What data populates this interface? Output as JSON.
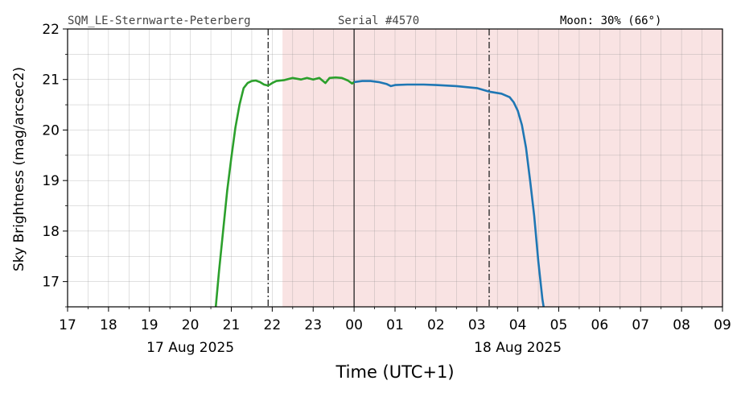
{
  "header": {
    "station": "SQM_LE-Sternwarte-Peterberg",
    "serial": "Serial #4570",
    "moon": "Moon: 30% (66°)"
  },
  "chart_data": {
    "type": "line",
    "xlabel": "Time (UTC+1)",
    "ylabel": "Sky Brightness (mag/arcsec2)",
    "x_units": "hours since 17 Aug 2025 00:00 (UTC+1)",
    "xlim": [
      17,
      33
    ],
    "ylim": [
      16.5,
      22
    ],
    "yticks": [
      17,
      18,
      19,
      20,
      21,
      22
    ],
    "ytick_labels": [
      "17",
      "18",
      "19",
      "20",
      "21",
      "22"
    ],
    "xticks": [
      17,
      18,
      19,
      20,
      21,
      22,
      23,
      24,
      25,
      26,
      27,
      28,
      29,
      30,
      31,
      32,
      33
    ],
    "xtick_labels": [
      "17",
      "18",
      "19",
      "20",
      "21",
      "22",
      "23",
      "00",
      "01",
      "02",
      "03",
      "04",
      "05",
      "06",
      "07",
      "08",
      "09"
    ],
    "date_labels": [
      {
        "x": 20,
        "text": "17 Aug 2025"
      },
      {
        "x": 28,
        "text": "18 Aug 2025"
      }
    ],
    "grid": true,
    "shaded_region": {
      "x_start": 22.25,
      "x_end": 33,
      "color": "#f9e3e3"
    },
    "vlines": [
      {
        "x": 21.9,
        "style": "dashdot"
      },
      {
        "x": 24.0,
        "style": "solid"
      },
      {
        "x": 27.3,
        "style": "dashdot"
      }
    ],
    "series": [
      {
        "color": "#2ca02c",
        "points": [
          [
            20.62,
            16.5
          ],
          [
            20.7,
            17.2
          ],
          [
            20.8,
            18.0
          ],
          [
            20.9,
            18.8
          ],
          [
            21.0,
            19.45
          ],
          [
            21.1,
            20.05
          ],
          [
            21.2,
            20.5
          ],
          [
            21.3,
            20.83
          ],
          [
            21.4,
            20.93
          ],
          [
            21.5,
            20.97
          ],
          [
            21.6,
            20.98
          ],
          [
            21.7,
            20.95
          ],
          [
            21.8,
            20.9
          ],
          [
            21.9,
            20.88
          ],
          [
            22.0,
            20.93
          ],
          [
            22.1,
            20.97
          ],
          [
            22.3,
            20.99
          ],
          [
            22.5,
            21.03
          ],
          [
            22.7,
            21.0
          ],
          [
            22.85,
            21.03
          ],
          [
            23.0,
            21.0
          ],
          [
            23.15,
            21.03
          ],
          [
            23.3,
            20.93
          ],
          [
            23.4,
            21.03
          ],
          [
            23.55,
            21.04
          ],
          [
            23.7,
            21.03
          ],
          [
            23.85,
            20.98
          ],
          [
            23.95,
            20.92
          ],
          [
            24.0,
            20.95
          ]
        ]
      },
      {
        "color": "#1f77b4",
        "points": [
          [
            24.0,
            20.95
          ],
          [
            24.2,
            20.97
          ],
          [
            24.4,
            20.97
          ],
          [
            24.6,
            20.95
          ],
          [
            24.8,
            20.91
          ],
          [
            24.9,
            20.87
          ],
          [
            25.0,
            20.89
          ],
          [
            25.3,
            20.9
          ],
          [
            25.7,
            20.9
          ],
          [
            26.0,
            20.89
          ],
          [
            26.5,
            20.87
          ],
          [
            27.0,
            20.83
          ],
          [
            27.3,
            20.76
          ],
          [
            27.6,
            20.72
          ],
          [
            27.8,
            20.65
          ],
          [
            27.9,
            20.55
          ],
          [
            28.0,
            20.38
          ],
          [
            28.1,
            20.1
          ],
          [
            28.2,
            19.65
          ],
          [
            28.3,
            19.0
          ],
          [
            28.4,
            18.3
          ],
          [
            28.5,
            17.4
          ],
          [
            28.6,
            16.65
          ],
          [
            28.63,
            16.5
          ]
        ]
      }
    ]
  }
}
